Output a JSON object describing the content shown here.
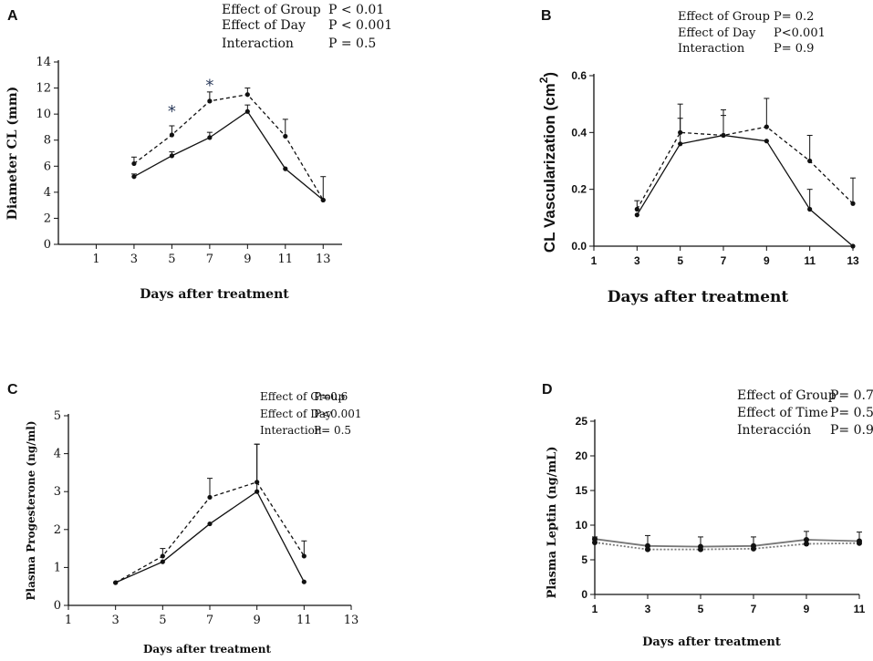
{
  "chart_data": [
    {
      "panel": "A",
      "type": "line",
      "xlabel": "Days after treatment",
      "ylabel": "Diameter  CL (mm)",
      "xlim": [
        -1,
        14
      ],
      "ylim": [
        0,
        14
      ],
      "xticks": [
        1,
        3,
        5,
        7,
        9,
        11,
        13
      ],
      "yticks": [
        0,
        2,
        4,
        6,
        8,
        10,
        12,
        14
      ],
      "stats": [
        {
          "label": "Effect of Group",
          "value": "P < 0.01"
        },
        {
          "label": "Effect of Day",
          "value": "P < 0.001"
        },
        {
          "label": "Interaction",
          "value": "P = 0.5"
        }
      ],
      "significance": [
        {
          "x": 5,
          "y": 9.8,
          "text": "*"
        },
        {
          "x": 7,
          "y": 11.8,
          "text": "*"
        }
      ],
      "series": [
        {
          "name": "solid",
          "style": "solid",
          "x": [
            3,
            5,
            7,
            9,
            11,
            13
          ],
          "y": [
            5.2,
            6.8,
            8.2,
            10.2,
            5.8,
            3.4
          ],
          "err": [
            0.2,
            0.3,
            0.4,
            0.5,
            0,
            0
          ]
        },
        {
          "name": "dashed",
          "style": "dashed",
          "x": [
            3,
            5,
            7,
            9,
            11,
            13
          ],
          "y": [
            6.2,
            8.4,
            11.0,
            11.5,
            8.3,
            3.4
          ],
          "err": [
            0.5,
            0.7,
            0.7,
            0.5,
            1.3,
            1.8
          ]
        }
      ]
    },
    {
      "panel": "B",
      "type": "line",
      "xlabel": "Days after treatment",
      "ylabel": "CL Vascularization (cm",
      "ylabel_sup": "2",
      "ylabel_end": ")",
      "xlim": [
        1,
        13
      ],
      "ylim": [
        0,
        0.6
      ],
      "xticks": [
        1,
        3,
        5,
        7,
        9,
        11,
        13
      ],
      "yticks": [
        0.0,
        0.2,
        0.4,
        0.6
      ],
      "ytick_labels": [
        "0.0",
        "0.2",
        "0.4",
        "0.6"
      ],
      "stats": [
        {
          "label": "Effect of Group",
          "value": "P= 0.2"
        },
        {
          "label": "Effect of Day",
          "value": "P<0.001"
        },
        {
          "label": "Interaction",
          "value": "P= 0.9"
        }
      ],
      "series": [
        {
          "name": "solid",
          "style": "solid",
          "x": [
            3,
            5,
            7,
            9,
            11,
            13
          ],
          "y": [
            0.11,
            0.36,
            0.39,
            0.37,
            0.13,
            0.0
          ],
          "err": [
            0,
            0.09,
            0.07,
            0,
            0.07,
            0
          ]
        },
        {
          "name": "dashed",
          "style": "dashed",
          "x": [
            3,
            5,
            7,
            9,
            11,
            13
          ],
          "y": [
            0.13,
            0.4,
            0.39,
            0.42,
            0.3,
            0.15
          ],
          "err": [
            0.03,
            0.1,
            0.09,
            0.1,
            0.09,
            0.09
          ]
        }
      ]
    },
    {
      "panel": "C",
      "type": "line",
      "xlabel": "Days after treatment",
      "ylabel": "Plasma Progesterone (ng/ml)",
      "xlim": [
        1,
        13
      ],
      "ylim": [
        0,
        5
      ],
      "xticks": [
        1,
        3,
        5,
        7,
        9,
        11,
        13
      ],
      "yticks": [
        0,
        1,
        2,
        3,
        4,
        5
      ],
      "stats": [
        {
          "label": "Effect of Group",
          "value": "P=0.6"
        },
        {
          "label": "Effect of  Day",
          "value": "P<0.001"
        },
        {
          "label": "Interaction",
          "value": "P= 0.5"
        }
      ],
      "series": [
        {
          "name": "solid",
          "style": "solid",
          "x": [
            3,
            5,
            7,
            9,
            11
          ],
          "y": [
            0.6,
            1.15,
            2.15,
            3.0,
            0.62
          ],
          "err": [
            0,
            0,
            0,
            1.25,
            0
          ]
        },
        {
          "name": "dashed",
          "style": "dashed",
          "x": [
            3,
            5,
            7,
            9,
            11
          ],
          "y": [
            0.6,
            1.3,
            2.85,
            3.25,
            1.3
          ],
          "err": [
            0,
            0.2,
            0.5,
            1.0,
            0.4
          ]
        }
      ]
    },
    {
      "panel": "D",
      "type": "line",
      "xlabel": "Days after treatment",
      "ylabel": "Plasma Leptin (ng/mL)",
      "xlim": [
        1,
        11
      ],
      "ylim": [
        0,
        25
      ],
      "xticks": [
        1,
        3,
        5,
        7,
        9,
        11
      ],
      "yticks": [
        0,
        5,
        10,
        15,
        20,
        25
      ],
      "stats": [
        {
          "label": "Effect of Group",
          "value": "P= 0.7"
        },
        {
          "label": "Effect of Time",
          "value": "P= 0.5"
        },
        {
          "label": "Interacción",
          "value": "P= 0.9"
        }
      ],
      "series": [
        {
          "name": "solid",
          "style": "solid",
          "x": [
            1,
            3,
            5,
            7,
            9,
            11
          ],
          "y": [
            8.0,
            7.0,
            6.9,
            7.0,
            7.9,
            7.7
          ],
          "err": [
            0.3,
            1.5,
            1.4,
            1.3,
            1.2,
            1.3
          ]
        },
        {
          "name": "dotted",
          "style": "dotted",
          "x": [
            1,
            3,
            5,
            7,
            9,
            11
          ],
          "y": [
            7.5,
            6.5,
            6.5,
            6.6,
            7.3,
            7.4
          ],
          "err": [
            0,
            0,
            0,
            0,
            0,
            0
          ]
        }
      ]
    }
  ]
}
